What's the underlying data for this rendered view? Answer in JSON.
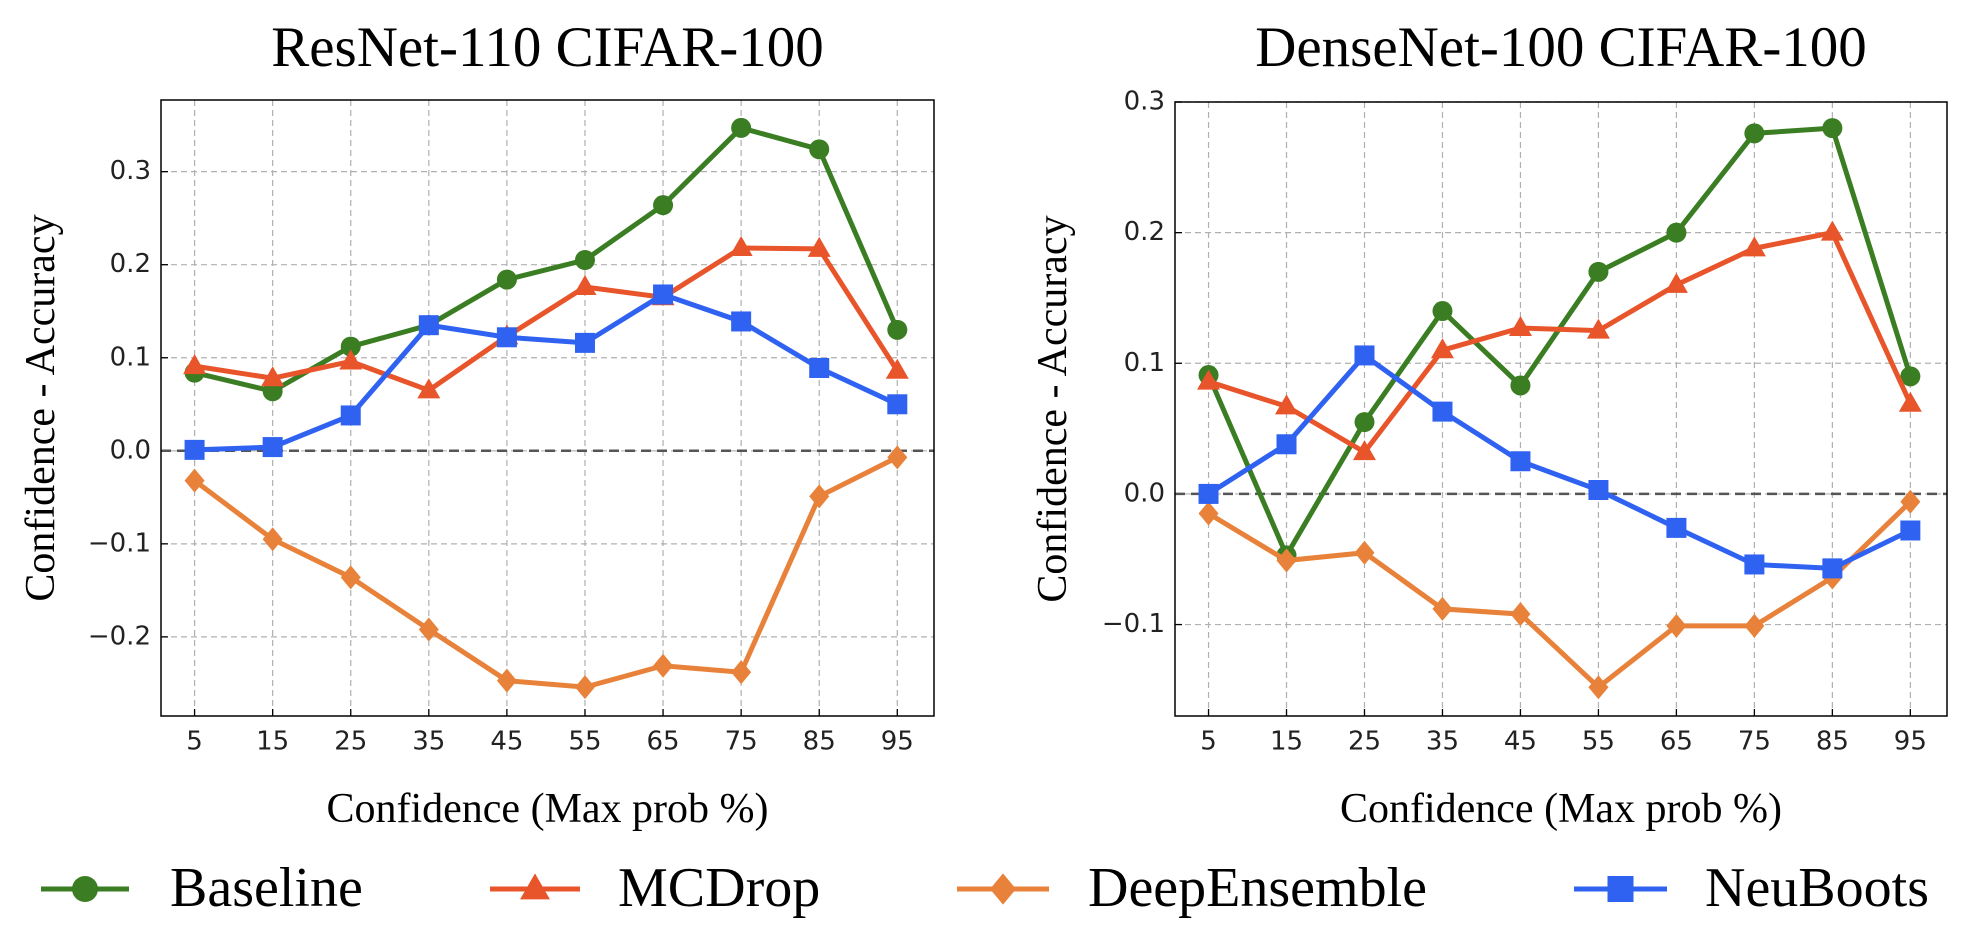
{
  "chart_data": [
    {
      "type": "line",
      "title": "ResNet-110 CIFAR-100",
      "xlabel": "Confidence (Max prob %)",
      "ylabel": "Confidence - Accuracy",
      "x": [
        5,
        15,
        25,
        35,
        45,
        55,
        65,
        75,
        85,
        95
      ],
      "xlim": [
        0.7,
        99.7
      ],
      "xticks": [
        5,
        15,
        25,
        35,
        45,
        55,
        65,
        75,
        85,
        95
      ],
      "ylim": [
        -0.285,
        0.377
      ],
      "yticks": [
        {
          "value": -0.2,
          "label": "−0.2"
        },
        {
          "value": -0.1,
          "label": "−0.1"
        },
        {
          "value": 0,
          "label": "0.0"
        },
        0.1,
        0.2,
        0.3
      ],
      "grid": true,
      "hline": 0,
      "legend": "bottom",
      "series": [
        {
          "name": "Baseline",
          "color": "#3a7d22",
          "marker": "circle",
          "values": [
            0.084,
            0.064,
            0.112,
            0.135,
            0.184,
            0.205,
            0.264,
            0.347,
            0.324,
            0.13
          ]
        },
        {
          "name": "MCDrop",
          "color": "#e8552b",
          "marker": "triangle",
          "values": [
            0.091,
            0.078,
            0.096,
            0.065,
            0.123,
            0.176,
            0.165,
            0.218,
            0.217,
            0.086
          ]
        },
        {
          "name": "DeepEnsemble",
          "color": "#e8823a",
          "marker": "diamond",
          "values": [
            -0.032,
            -0.095,
            -0.136,
            -0.192,
            -0.247,
            -0.254,
            -0.231,
            -0.238,
            -0.049,
            -0.007
          ]
        },
        {
          "name": "NeuBoots",
          "color": "#2f62f0",
          "marker": "square",
          "values": [
            0.001,
            0.004,
            0.038,
            0.135,
            0.122,
            0.116,
            0.168,
            0.139,
            0.089,
            0.05
          ]
        }
      ]
    },
    {
      "type": "line",
      "title": "DenseNet-100 CIFAR-100",
      "xlabel": "Confidence (Max prob %)",
      "ylabel": "Confidence - Accuracy",
      "x": [
        5,
        15,
        25,
        35,
        45,
        55,
        65,
        75,
        85,
        95
      ],
      "xlim": [
        0.7,
        99.7
      ],
      "xticks": [
        5,
        15,
        25,
        35,
        45,
        55,
        65,
        75,
        85,
        95
      ],
      "ylim": [
        -0.17,
        0.3
      ],
      "yticks": [
        {
          "value": -0.1,
          "label": "−0.1"
        },
        {
          "value": 0,
          "label": "0.0"
        },
        0.1,
        0.2,
        0.3
      ],
      "grid": true,
      "hline": 0,
      "series": [
        {
          "name": "Baseline",
          "color": "#3a7d22",
          "marker": "circle",
          "values": [
            0.091,
            -0.047,
            0.055,
            0.14,
            0.083,
            0.17,
            0.2,
            0.276,
            0.28,
            0.09
          ]
        },
        {
          "name": "MCDrop",
          "color": "#e8552b",
          "marker": "triangle",
          "values": [
            0.086,
            0.067,
            0.032,
            0.11,
            0.127,
            0.125,
            0.16,
            0.188,
            0.2,
            0.069
          ]
        },
        {
          "name": "DeepEnsemble",
          "color": "#e8823a",
          "marker": "diamond",
          "values": [
            -0.015,
            -0.051,
            -0.045,
            -0.088,
            -0.092,
            -0.148,
            -0.101,
            -0.101,
            -0.064,
            -0.006
          ]
        },
        {
          "name": "NeuBoots",
          "color": "#2f62f0",
          "marker": "square",
          "values": [
            0.0,
            0.038,
            0.106,
            0.063,
            0.025,
            0.003,
            -0.026,
            -0.054,
            -0.057,
            -0.028
          ]
        }
      ]
    }
  ]
}
